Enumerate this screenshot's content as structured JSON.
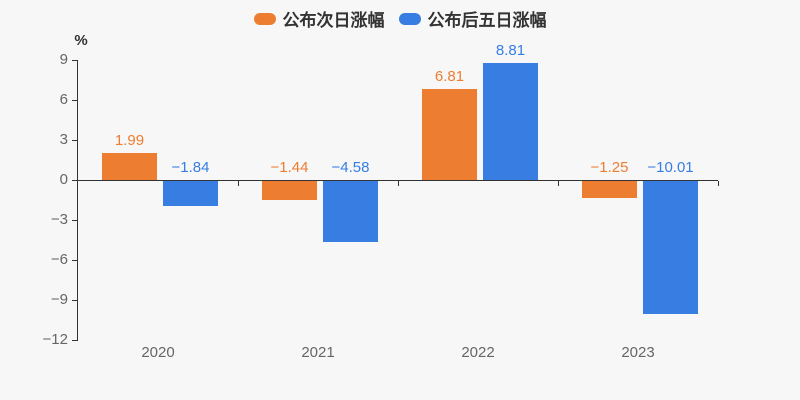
{
  "background": "#f7f7f7",
  "legend": {
    "items": [
      {
        "label": "公布次日涨幅",
        "color": "#ed7d31"
      },
      {
        "label": "公布后五日涨幅",
        "color": "#377de2"
      }
    ]
  },
  "axis": {
    "unit_label": "%",
    "y_tick_labels": [
      "9",
      "6",
      "3",
      "0",
      "−3",
      "−6",
      "−9",
      "−12"
    ],
    "y_tick_values": [
      9,
      6,
      3,
      0,
      -3,
      -6,
      -9,
      -12
    ],
    "line_color": "#333333",
    "tick_label_color": "#666666"
  },
  "chart_data": {
    "type": "bar",
    "categories": [
      "2020",
      "2021",
      "2022",
      "2023"
    ],
    "series": [
      {
        "name": "公布次日涨幅",
        "color": "#ed7d31",
        "values": [
          1.99,
          -1.44,
          6.81,
          -1.25
        ],
        "labels": [
          "1.99",
          "−1.44",
          "6.81",
          "−1.25"
        ]
      },
      {
        "name": "公布后五日涨幅",
        "color": "#377de2",
        "values": [
          -1.84,
          -4.58,
          8.81,
          -10.01
        ],
        "labels": [
          "−1.84",
          "−4.58",
          "8.81",
          "−10.01"
        ]
      }
    ],
    "title": "",
    "xlabel": "",
    "ylabel": "%",
    "ylim": [
      -12,
      9
    ],
    "grid": false,
    "legend_position": "top"
  }
}
